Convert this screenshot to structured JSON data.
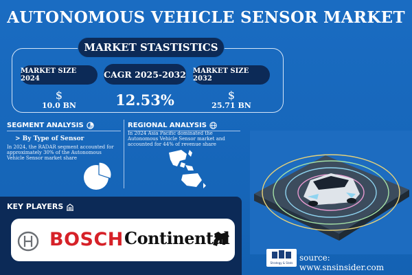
{
  "title": "AUTONOMOUS VEHICLE SENSOR MARKET",
  "stats": {
    "heading": "MARKET STASTISTICS",
    "box1_label": "MARKET SIZE 2024",
    "box1_currency": "$",
    "box1_value": "10.0 BN",
    "box2_label": "CAGR 2025-2032",
    "box2_value": "12.53%",
    "box3_label": "MARKET SIZE 2032",
    "box3_currency": "$",
    "box3_value": "25.71 BN"
  },
  "segment": {
    "title": "SEGMENT ANALYSIS",
    "subtitle": "> By Type of Sensor",
    "text": "In 2024, the RADAR segment accounted for approximately 30% of the Autonomous Vehicle Sensor market share",
    "share_fraction": 0.3
  },
  "regional": {
    "title": "REGIONAL ANALYSIS",
    "text": "In 2024 Asia Pacific dominated the Autonomous Vehicle Sensor market and accounted for 44% of revenue share"
  },
  "key_players": {
    "title": "KEY PLAYERS",
    "players": [
      "BOSCH",
      "Continental"
    ]
  },
  "logo": {
    "text": "Strategy & Stats"
  },
  "source": "source: www.snsinsider.com",
  "colors": {
    "background": "#1566b8",
    "dark_navy": "#0c2a57",
    "bosch_red": "#d62128",
    "white": "#ffffff"
  },
  "icons": [
    "pie-chart-icon",
    "globe-icon",
    "building-icon",
    "bosch-ring-icon",
    "horse-icon"
  ]
}
